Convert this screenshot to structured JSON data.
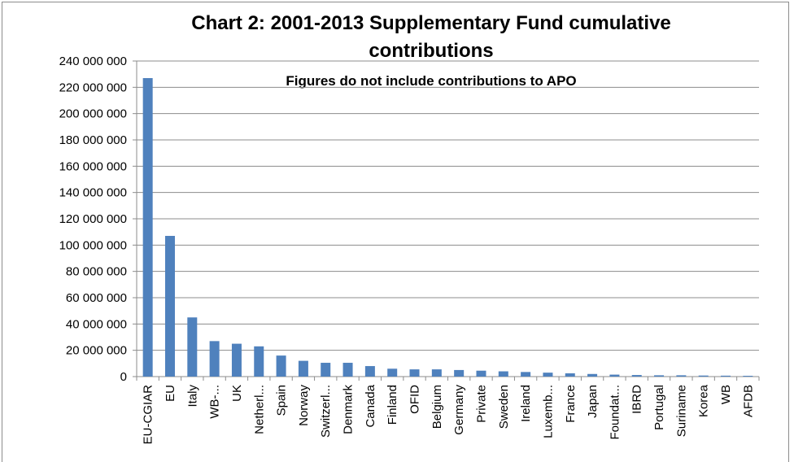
{
  "chart_data": {
    "type": "bar",
    "title": "Chart 2: 2001-2013 Supplementary Fund cumulative",
    "title_line2": "contributions",
    "subtitle": "Figures do not include contributions to APO",
    "xlabel": "",
    "ylabel": "",
    "ylim": [
      0,
      240000000
    ],
    "yticks": [
      "0",
      "20 000 000",
      "40 000 000",
      "60 000 000",
      "80 000 000",
      "100 000 000",
      "120 000 000",
      "140 000 000",
      "160 000 000",
      "180 000 000",
      "200 000 000",
      "220 000 000",
      "240 000 000"
    ],
    "grid": true,
    "legend": "none",
    "bar_color": "#4f81bd",
    "categories": [
      "EU-CGIAR",
      "EU",
      "Italy",
      "WB-...",
      "UK",
      "Netherl...",
      "Spain",
      "Norway",
      "Switzerl...",
      "Denmark",
      "Canada",
      "Finland",
      "OFID",
      "Belgium",
      "Germany",
      "Private",
      "Sweden",
      "Ireland",
      "Luxemb...",
      "France",
      "Japan",
      "Foundat...",
      "IBRD",
      "Portugal",
      "Suriname",
      "Korea",
      "WB",
      "AFDB"
    ],
    "values": [
      227000000,
      107000000,
      45000000,
      27000000,
      25000000,
      23000000,
      16000000,
      12000000,
      10500000,
      10500000,
      8000000,
      6000000,
      5500000,
      5500000,
      5000000,
      4500000,
      4000000,
      3500000,
      3000000,
      2500000,
      2000000,
      1500000,
      1200000,
      1000000,
      1000000,
      800000,
      700000,
      600000
    ]
  }
}
